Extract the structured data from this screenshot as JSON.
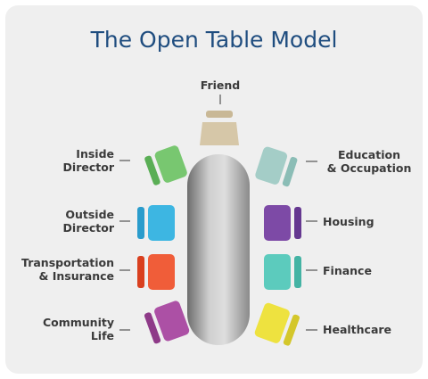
{
  "title": "The Open Table Model",
  "seats": [
    {
      "label": "Friend",
      "color": "#d2c3a4"
    },
    {
      "label": "Inside Director",
      "color": "#72c26b"
    },
    {
      "label": "Outside Director",
      "color": "#3bb2df"
    },
    {
      "label": "Transportation & Insurance",
      "color": "#ee5a37"
    },
    {
      "label": "Community Life",
      "color": "#aa4da2"
    },
    {
      "label": "Education & Occupation",
      "color": "#9fc9c3"
    },
    {
      "label": "Housing",
      "color": "#7a48a4"
    },
    {
      "label": "Finance",
      "color": "#59c9bb"
    },
    {
      "label": "Healthcare",
      "color": "#ede13e"
    }
  ],
  "labels": {
    "friend": "Friend",
    "inside_1": "Inside",
    "inside_2": "Director",
    "outside_1": "Outside",
    "outside_2": "Director",
    "transport_1": "Transportation",
    "transport_2": "& Insurance",
    "community_1": "Community",
    "community_2": "Life",
    "education_1": "Education",
    "education_2": "& Occupation",
    "housing": "Housing",
    "finance": "Finance",
    "healthcare": "Healthcare"
  },
  "colors": {
    "title": "#1f4d7f",
    "table_light": "#d9d9d9",
    "table_dark": "#6f6f6f"
  }
}
